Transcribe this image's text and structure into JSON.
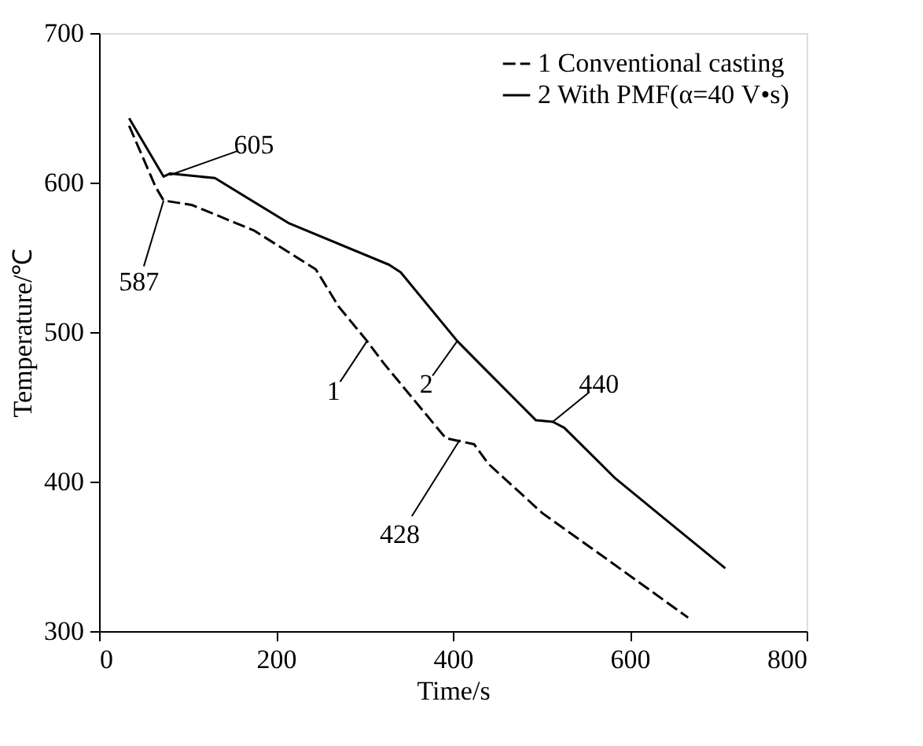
{
  "chart_data": {
    "type": "line",
    "xlabel": "Time/s",
    "ylabel": "Temperature/℃",
    "xlim": [
      0,
      800
    ],
    "ylim": [
      300,
      700
    ],
    "xticks": [
      0,
      200,
      400,
      600,
      800
    ],
    "yticks": [
      300,
      400,
      500,
      600,
      700
    ],
    "grid": false,
    "legend": "top right",
    "marker": "none",
    "series": [
      {
        "name": "1 Conventional casting",
        "color": "#000000",
        "line_style": "dashed",
        "x": [
          34,
          64,
          73,
          105,
          175,
          245,
          271,
          303,
          322,
          392,
          408,
          424,
          440,
          501,
          565,
          666
        ],
        "values": [
          638,
          597,
          588,
          585,
          568,
          542,
          517,
          494,
          479,
          429,
          427,
          425,
          412,
          379,
          352,
          309
        ]
      },
      {
        "name": "2 With PMF(α=40 V•s)",
        "color": "#000000",
        "line_style": "solid",
        "x": [
          34,
          73,
          80,
          131,
          214,
          328,
          341,
          405,
          430,
          494,
          513,
          526,
          584,
          648,
          708
        ],
        "values": [
          643,
          604,
          606,
          603,
          573,
          545,
          540,
          494,
          479,
          441,
          440,
          436,
          402,
          371,
          342
        ]
      }
    ],
    "annotations": [
      {
        "text": "605",
        "x": 80,
        "y": 605
      },
      {
        "text": "587",
        "x": 73,
        "y": 588
      },
      {
        "text": "440",
        "x": 513,
        "y": 440
      },
      {
        "text": "428",
        "x": 408,
        "y": 428
      },
      {
        "text": "1",
        "x": 303,
        "y": 494
      },
      {
        "text": "2",
        "x": 405,
        "y": 494
      }
    ]
  }
}
